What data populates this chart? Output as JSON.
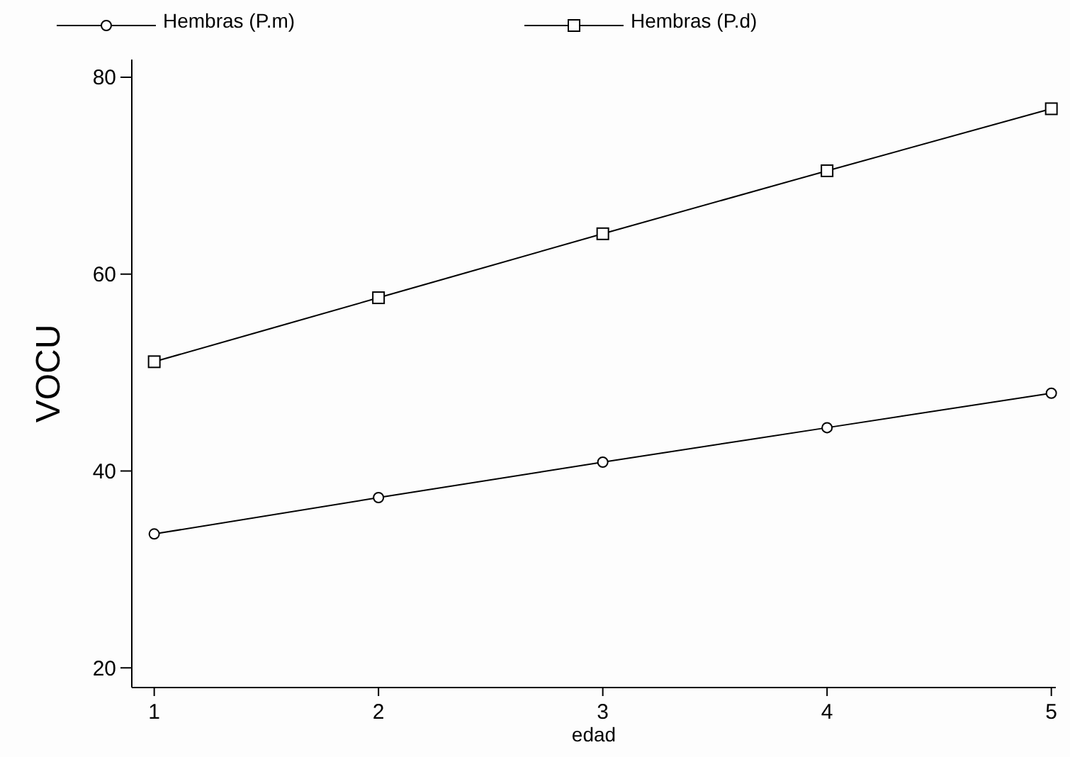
{
  "chart_data": {
    "type": "line",
    "xlabel": "edad",
    "ylabel": "VOCU",
    "x": [
      1,
      2,
      3,
      4,
      5
    ],
    "xlim": [
      0.9,
      5.02
    ],
    "xticks": [
      1,
      2,
      3,
      4,
      5
    ],
    "ylim": [
      18,
      81.8
    ],
    "yticks": [
      20,
      40,
      60,
      80
    ],
    "grid": false,
    "legend": "top",
    "line_style": "solid",
    "series": [
      {
        "name": "Hembras (P.m)",
        "color": "#000000",
        "marker": "circle",
        "values": [
          33.6,
          37.3,
          40.9,
          44.4,
          47.9
        ]
      },
      {
        "name": "Hembras (P.d)",
        "color": "#000000",
        "marker": "square",
        "values": [
          51.1,
          57.6,
          64.1,
          70.5,
          76.8
        ]
      }
    ]
  }
}
